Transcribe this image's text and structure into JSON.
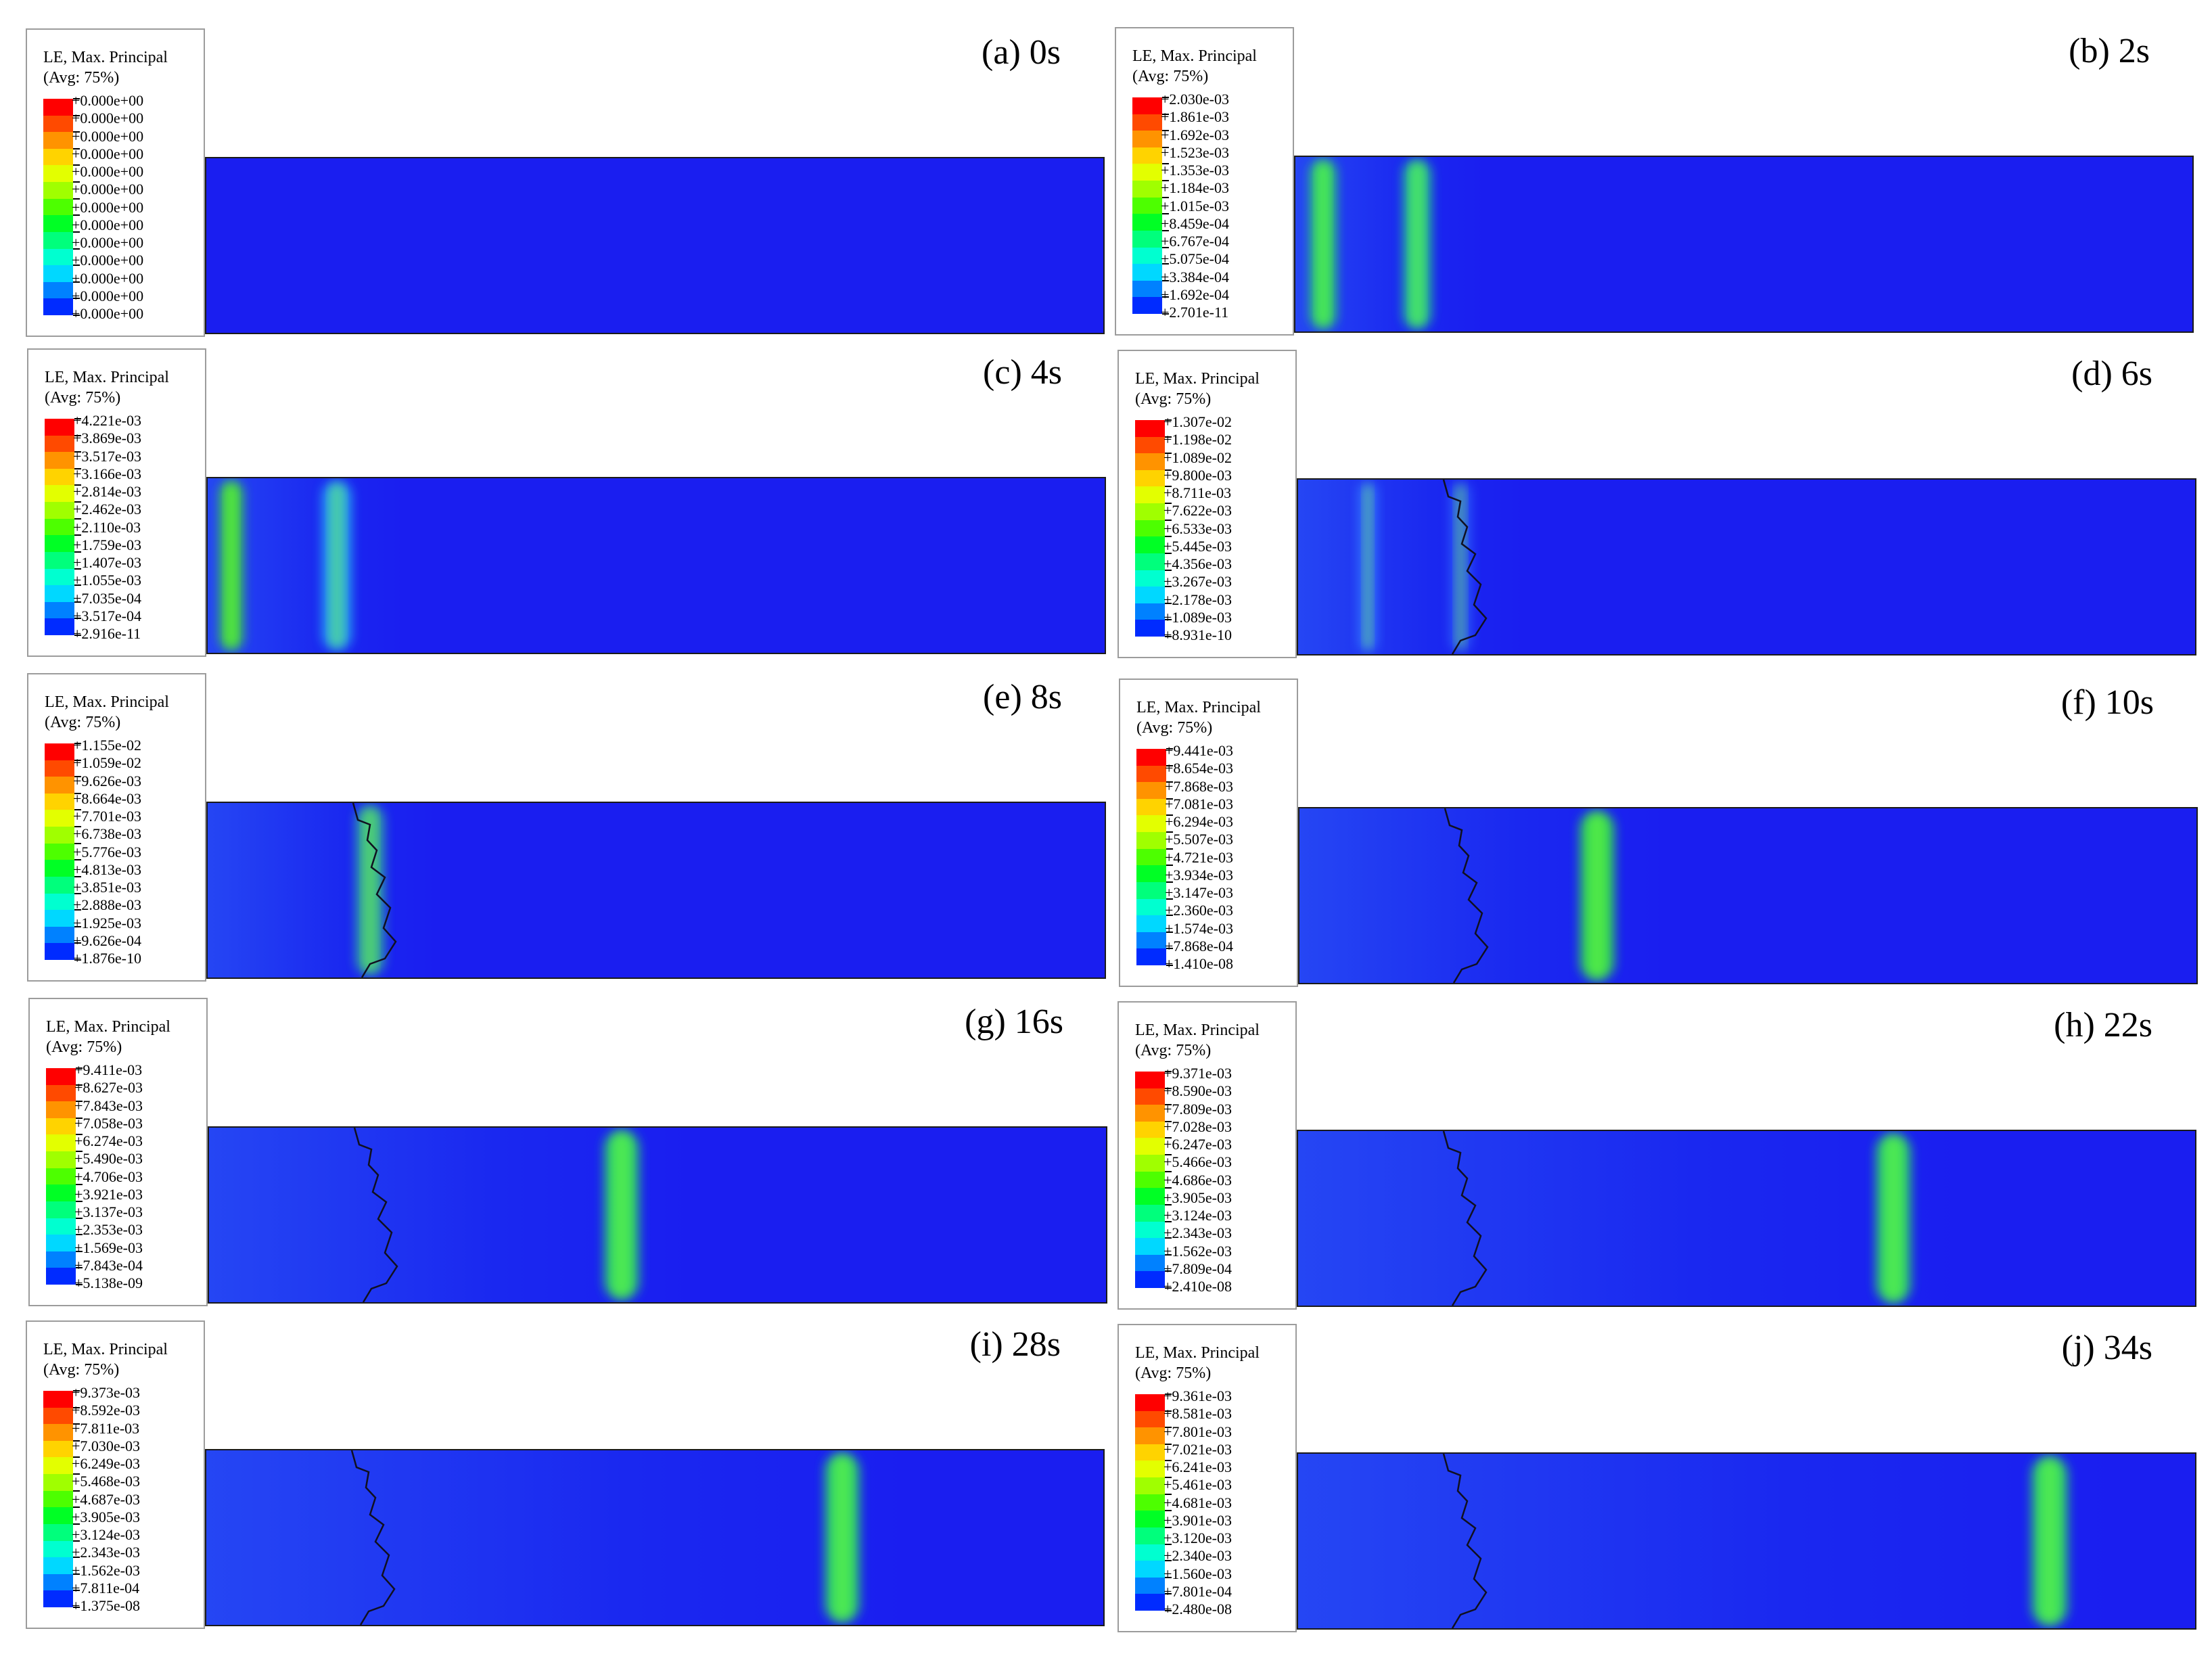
{
  "legend_title": "LE, Max. Principal",
  "legend_subtitle": "(Avg: 75%)",
  "scale_colors": [
    "#ff0000",
    "#ff4a00",
    "#ff9300",
    "#ffd300",
    "#e3ff00",
    "#a0ff00",
    "#4dff00",
    "#00ff25",
    "#00ff7c",
    "#00ffd0",
    "#00d8ff",
    "#0081ff",
    "#002bff"
  ],
  "field_color": "#1a1ef0",
  "panels": [
    {
      "caption": "(a) 0s",
      "legend_values": [
        "+0.000e+00",
        "+0.000e+00",
        "+0.000e+00",
        "+0.000e+00",
        "+0.000e+00",
        "+0.000e+00",
        "+0.000e+00",
        "+0.000e+00",
        "+0.000e+00",
        "+0.000e+00",
        "+0.000e+00",
        "+0.000e+00",
        "+0.000e+00"
      ]
    },
    {
      "caption": "(b) 2s",
      "legend_values": [
        "+2.030e-03",
        "+1.861e-03",
        "+1.692e-03",
        "+1.523e-03",
        "+1.353e-03",
        "+1.184e-03",
        "+1.015e-03",
        "+8.459e-04",
        "+6.767e-04",
        "+5.075e-04",
        "+3.384e-04",
        "+1.692e-04",
        "+2.701e-11"
      ]
    },
    {
      "caption": "(c) 4s",
      "legend_values": [
        "+4.221e-03",
        "+3.869e-03",
        "+3.517e-03",
        "+3.166e-03",
        "+2.814e-03",
        "+2.462e-03",
        "+2.110e-03",
        "+1.759e-03",
        "+1.407e-03",
        "+1.055e-03",
        "+7.035e-04",
        "+3.517e-04",
        "+2.916e-11"
      ]
    },
    {
      "caption": "(d) 6s",
      "legend_values": [
        "+1.307e-02",
        "+1.198e-02",
        "+1.089e-02",
        "+9.800e-03",
        "+8.711e-03",
        "+7.622e-03",
        "+6.533e-03",
        "+5.445e-03",
        "+4.356e-03",
        "+3.267e-03",
        "+2.178e-03",
        "+1.089e-03",
        "+8.931e-10"
      ]
    },
    {
      "caption": "(e) 8s",
      "legend_values": [
        "+1.155e-02",
        "+1.059e-02",
        "+9.626e-03",
        "+8.664e-03",
        "+7.701e-03",
        "+6.738e-03",
        "+5.776e-03",
        "+4.813e-03",
        "+3.851e-03",
        "+2.888e-03",
        "+1.925e-03",
        "+9.626e-04",
        "+1.876e-10"
      ]
    },
    {
      "caption": "(f) 10s",
      "legend_values": [
        "+9.441e-03",
        "+8.654e-03",
        "+7.868e-03",
        "+7.081e-03",
        "+6.294e-03",
        "+5.507e-03",
        "+4.721e-03",
        "+3.934e-03",
        "+3.147e-03",
        "+2.360e-03",
        "+1.574e-03",
        "+7.868e-04",
        "+1.410e-08"
      ]
    },
    {
      "caption": "(g) 16s",
      "legend_values": [
        "+9.411e-03",
        "+8.627e-03",
        "+7.843e-03",
        "+7.058e-03",
        "+6.274e-03",
        "+5.490e-03",
        "+4.706e-03",
        "+3.921e-03",
        "+3.137e-03",
        "+2.353e-03",
        "+1.569e-03",
        "+7.843e-04",
        "+5.138e-09"
      ]
    },
    {
      "caption": "(h) 22s",
      "legend_values": [
        "+9.371e-03",
        "+8.590e-03",
        "+7.809e-03",
        "+7.028e-03",
        "+6.247e-03",
        "+5.466e-03",
        "+4.686e-03",
        "+3.905e-03",
        "+3.124e-03",
        "+2.343e-03",
        "+1.562e-03",
        "+7.809e-04",
        "+2.410e-08"
      ]
    },
    {
      "caption": "(i) 28s",
      "legend_values": [
        "+9.373e-03",
        "+8.592e-03",
        "+7.811e-03",
        "+7.030e-03",
        "+6.249e-03",
        "+5.468e-03",
        "+4.687e-03",
        "+3.905e-03",
        "+3.124e-03",
        "+2.343e-03",
        "+1.562e-03",
        "+7.811e-04",
        "+1.375e-08"
      ]
    },
    {
      "caption": "(j) 34s",
      "legend_values": [
        "+9.361e-03",
        "+8.581e-03",
        "+7.801e-03",
        "+7.021e-03",
        "+6.241e-03",
        "+5.461e-03",
        "+4.681e-03",
        "+3.901e-03",
        "+3.120e-03",
        "+2.340e-03",
        "+1.560e-03",
        "+7.801e-04",
        "+2.480e-08"
      ]
    }
  ]
}
